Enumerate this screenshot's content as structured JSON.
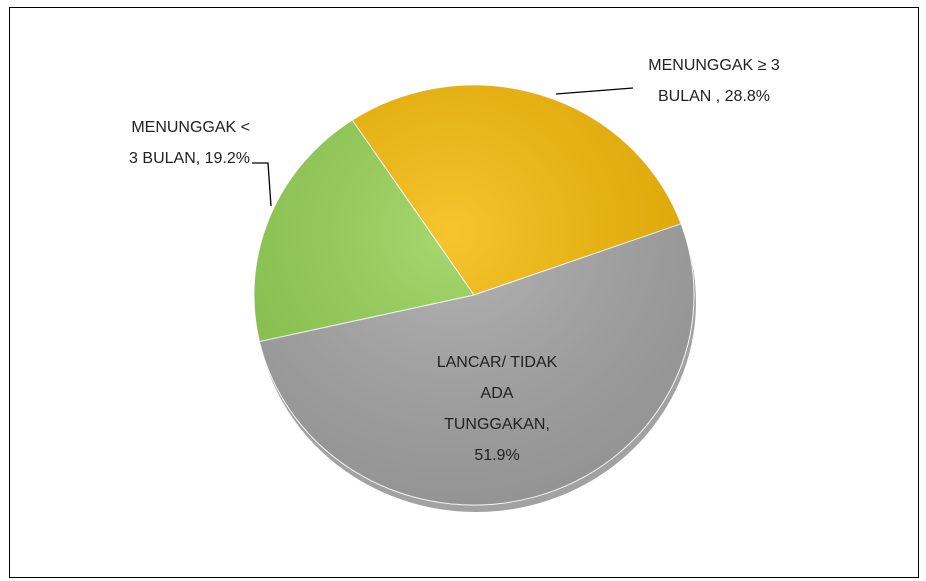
{
  "chart_data": {
    "type": "pie",
    "values": [
      28.8,
      51.9,
      19.2
    ],
    "value_labels": [
      [
        "MENUNGGAK ≥ 3",
        "BULAN , 28.8%"
      ],
      [
        "LANCAR/ TIDAK",
        "ADA",
        "TUNGGAKAN,",
        "51.9%"
      ],
      [
        "MENUNGGAK <",
        "3 BULAN, 19.2%"
      ]
    ],
    "colors": [
      "#f5b800",
      "#a5a5a5",
      "#92d050"
    ]
  }
}
